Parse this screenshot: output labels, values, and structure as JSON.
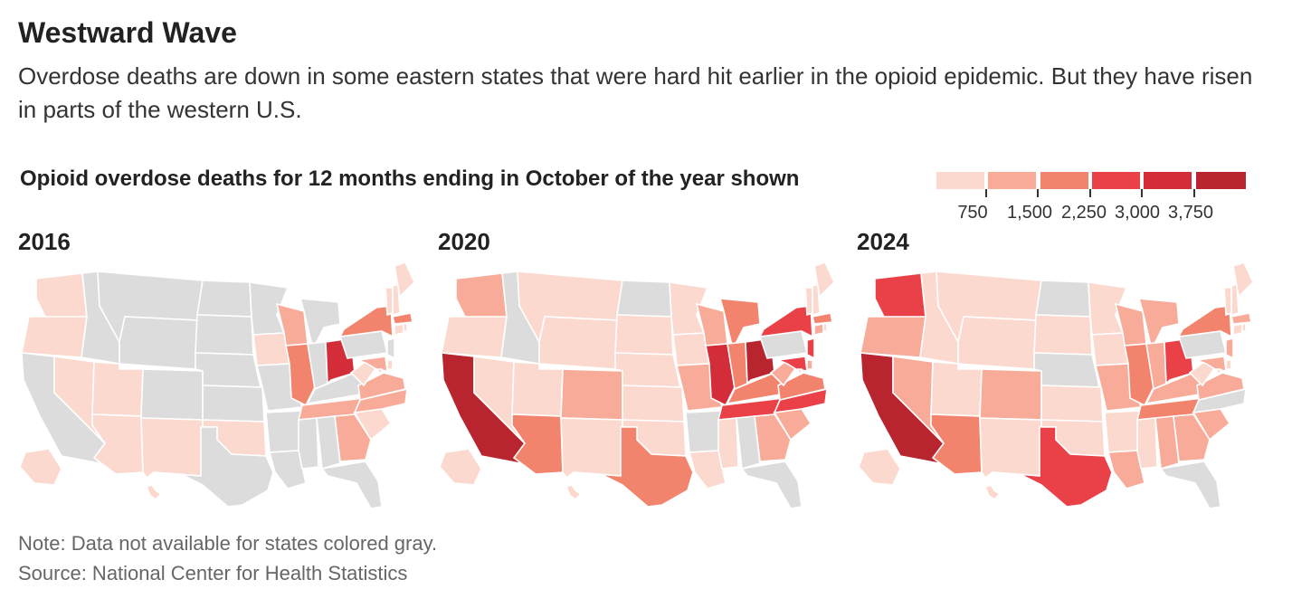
{
  "header": {
    "title": "Westward Wave",
    "dek": "Overdose deaths are down in some eastern states that were hard hit earlier in the opioid epidemic. But they have risen in parts of the western U.S."
  },
  "chart_data": {
    "type": "choropleth",
    "title": "Opioid overdose deaths for 12 months ending in October of the year shown",
    "legend": {
      "placement": "top-right",
      "breaks": [
        "750",
        "1,500",
        "2,250",
        "3,000",
        "3,750"
      ],
      "colors": [
        "#fcd9cf",
        "#f7ab98",
        "#f2846d",
        "#ea4047",
        "#d22d38",
        "#b8252f"
      ],
      "no_data_color": "#dcdcdc"
    },
    "maps": [
      {
        "year": "2016",
        "states": {
          "WA": 0,
          "OR": 0,
          "NV": 0,
          "UT": 0,
          "AZ": 0,
          "NM": 0,
          "OK": 0,
          "AK": 0,
          "HI": 0,
          "CA": -1,
          "ID": -1,
          "MT": -1,
          "WY": -1,
          "CO": -1,
          "ND": -1,
          "SD": -1,
          "NE": -1,
          "KS": -1,
          "TX": -1,
          "MN": -1,
          "IA": 0,
          "MO": -1,
          "AR": -1,
          "LA": -1,
          "MS": -1,
          "AL": -1,
          "FL": -1,
          "WI": 1,
          "IL": 2,
          "MI": -1,
          "IN": -1,
          "OH": 4,
          "KY": -1,
          "TN": 1,
          "GA": 1,
          "SC": 0,
          "NC": 1,
          "VA": 1,
          "WV": 0,
          "PA": -1,
          "NY": 2,
          "NJ": -1,
          "DE": 0,
          "MD": 1,
          "DC": 0,
          "CT": 0,
          "RI": 0,
          "MA": 2,
          "VT": 0,
          "NH": 0,
          "ME": 0
        }
      },
      {
        "year": "2020",
        "states": {
          "WA": 1,
          "OR": 0,
          "NV": 0,
          "UT": 0,
          "AZ": 2,
          "NM": 0,
          "OK": 0,
          "AK": 0,
          "HI": 0,
          "CA": 5,
          "ID": -1,
          "MT": 0,
          "WY": 0,
          "CO": 1,
          "ND": -1,
          "SD": 0,
          "NE": 0,
          "KS": 0,
          "TX": 2,
          "MN": 0,
          "IA": 0,
          "MO": 1,
          "AR": -1,
          "LA": 0,
          "MS": 0,
          "AL": -1,
          "FL": -1,
          "WI": 1,
          "IL": 4,
          "MI": 2,
          "IN": 2,
          "OH": 5,
          "KY": 2,
          "TN": 3,
          "GA": 1,
          "SC": 1,
          "NC": 3,
          "VA": 2,
          "WV": 1,
          "PA": -1,
          "NY": 3,
          "NJ": 3,
          "DE": 1,
          "MD": 3,
          "DC": 0,
          "CT": 1,
          "RI": 0,
          "MA": 2,
          "VT": 0,
          "NH": 0,
          "ME": 0
        }
      },
      {
        "year": "2024",
        "states": {
          "WA": 3,
          "OR": 1,
          "NV": 1,
          "UT": 0,
          "AZ": 2,
          "NM": 0,
          "OK": 0,
          "AK": 0,
          "HI": 0,
          "CA": 5,
          "ID": 0,
          "MT": 0,
          "WY": 0,
          "CO": 1,
          "ND": -1,
          "SD": 0,
          "NE": -1,
          "KS": 0,
          "TX": 3,
          "MN": 0,
          "IA": 0,
          "MO": 1,
          "AR": 0,
          "LA": 1,
          "MS": 0,
          "AL": 1,
          "FL": -1,
          "WI": 1,
          "IL": 2,
          "MI": 1,
          "IN": 1,
          "OH": 3,
          "KY": 1,
          "TN": 2,
          "GA": 1,
          "SC": 1,
          "NC": -1,
          "VA": 1,
          "WV": 0,
          "PA": -1,
          "NY": 2,
          "NJ": 1,
          "DE": 0,
          "MD": 1,
          "DC": 0,
          "CT": 0,
          "RI": 0,
          "MA": 1,
          "VT": 0,
          "NH": 0,
          "ME": 0
        }
      }
    ]
  },
  "footer": {
    "note": "Note: Data not available for states colored gray.",
    "source": "Source: National Center for Health Statistics"
  }
}
